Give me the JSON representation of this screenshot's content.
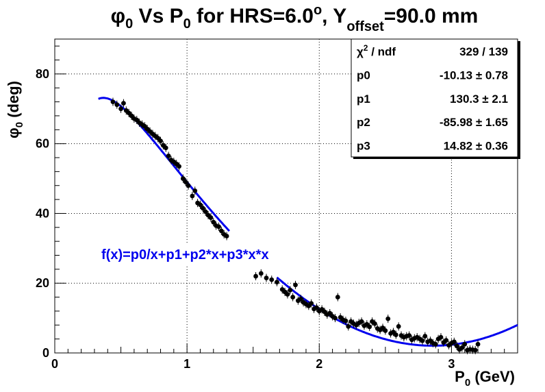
{
  "chart_data": {
    "type": "scatter",
    "title": {
      "phi": "φ",
      "phi_sub": "0",
      "mid": " Vs P",
      "p_sub": "0",
      "mid2": " for HRS=6.0",
      "deg_sup": "o",
      "mid3": ", Y",
      "y_sub": "offset",
      "end": "=90.0 mm"
    },
    "xlabel": {
      "base": "P",
      "sub": "0",
      "rest": " (GeV)"
    },
    "ylabel": {
      "base": "φ",
      "sub": "0",
      "rest": " (deg)"
    },
    "xlim": [
      0,
      3.5
    ],
    "ylim": [
      0,
      90
    ],
    "x_ticks": [
      0,
      1,
      2,
      3
    ],
    "x_tick_labels": [
      "0",
      "1",
      "2",
      "3"
    ],
    "y_ticks": [
      0,
      20,
      40,
      60,
      80
    ],
    "y_tick_labels": [
      "0",
      "20",
      "40",
      "60",
      "80"
    ],
    "grid": true,
    "stats_box": {
      "placement": "top-right",
      "rows": [
        {
          "label": "χ",
          "label_sup": "2",
          "label_rest": " / ndf",
          "value": "329 / 139"
        },
        {
          "label": "p0",
          "label_sup": "",
          "label_rest": "",
          "value": "-10.13 ± 0.78"
        },
        {
          "label": "p1",
          "label_sup": "",
          "label_rest": "",
          "value": "130.3 ± 2.1"
        },
        {
          "label": "p2",
          "label_sup": "",
          "label_rest": "",
          "value": "-85.98 ± 1.65"
        },
        {
          "label": "p3",
          "label_sup": "",
          "label_rest": "",
          "value": "14.82 ± 0.36"
        }
      ]
    },
    "fit": {
      "label": "f(x)=p0/x+p1+p2*x+p3*x*x",
      "p0": -10.13,
      "p1": 130.3,
      "p2": -85.98,
      "p3": 14.82,
      "x_range": [
        0.33,
        3.5
      ],
      "gap_x": [
        1.32,
        1.68
      ],
      "color": "#0000ee"
    },
    "series": [
      {
        "marker_color": "#000000",
        "points": [
          [
            0.44,
            72.0
          ],
          [
            0.47,
            71.2
          ],
          [
            0.5,
            70.0
          ],
          [
            0.52,
            71.6
          ],
          [
            0.54,
            69.5
          ],
          [
            0.56,
            68.8
          ],
          [
            0.58,
            68.0
          ],
          [
            0.6,
            67.2
          ],
          [
            0.62,
            66.8
          ],
          [
            0.64,
            66.0
          ],
          [
            0.66,
            65.5
          ],
          [
            0.68,
            65.0
          ],
          [
            0.7,
            64.2
          ],
          [
            0.72,
            63.5
          ],
          [
            0.74,
            62.8
          ],
          [
            0.76,
            62.2
          ],
          [
            0.78,
            61.6
          ],
          [
            0.8,
            60.8
          ],
          [
            0.82,
            59.5
          ],
          [
            0.84,
            58.8
          ],
          [
            0.86,
            56.5
          ],
          [
            0.88,
            55.3
          ],
          [
            0.9,
            54.8
          ],
          [
            0.92,
            54.2
          ],
          [
            0.94,
            53.5
          ],
          [
            0.97,
            50.0
          ],
          [
            0.99,
            49.0
          ],
          [
            1.01,
            48.0
          ],
          [
            1.04,
            45.0
          ],
          [
            1.06,
            46.5
          ],
          [
            1.08,
            43.0
          ],
          [
            1.1,
            42.5
          ],
          [
            1.12,
            41.5
          ],
          [
            1.14,
            40.5
          ],
          [
            1.16,
            39.5
          ],
          [
            1.18,
            38.8
          ],
          [
            1.2,
            37.5
          ],
          [
            1.22,
            36.5
          ],
          [
            1.24,
            36.2
          ],
          [
            1.26,
            35.0
          ],
          [
            1.28,
            34.0
          ],
          [
            1.3,
            33.5
          ],
          [
            1.52,
            22.0
          ],
          [
            1.56,
            22.8
          ],
          [
            1.6,
            21.5
          ],
          [
            1.64,
            21.0
          ],
          [
            1.68,
            20.3
          ],
          [
            1.72,
            18.2
          ],
          [
            1.74,
            17.5
          ],
          [
            1.76,
            16.8
          ],
          [
            1.78,
            18.0
          ],
          [
            1.8,
            16.0
          ],
          [
            1.82,
            19.5
          ],
          [
            1.84,
            15.0
          ],
          [
            1.86,
            15.5
          ],
          [
            1.88,
            14.5
          ],
          [
            1.9,
            14.0
          ],
          [
            1.92,
            13.5
          ],
          [
            1.94,
            14.2
          ],
          [
            1.96,
            12.6
          ],
          [
            1.98,
            13.0
          ],
          [
            2.0,
            12.0
          ],
          [
            2.02,
            12.5
          ],
          [
            2.04,
            11.8
          ],
          [
            2.06,
            11.0
          ],
          [
            2.08,
            11.4
          ],
          [
            2.1,
            10.5
          ],
          [
            2.12,
            10.0
          ],
          [
            2.14,
            16.0
          ],
          [
            2.16,
            10.2
          ],
          [
            2.18,
            9.5
          ],
          [
            2.2,
            9.2
          ],
          [
            2.22,
            7.6
          ],
          [
            2.24,
            9.0
          ],
          [
            2.26,
            8.4
          ],
          [
            2.28,
            8.0
          ],
          [
            2.3,
            8.6
          ],
          [
            2.32,
            9.0
          ],
          [
            2.34,
            7.8
          ],
          [
            2.36,
            8.2
          ],
          [
            2.38,
            7.5
          ],
          [
            2.4,
            9.0
          ],
          [
            2.42,
            8.4
          ],
          [
            2.44,
            7.0
          ],
          [
            2.46,
            6.6
          ],
          [
            2.48,
            7.2
          ],
          [
            2.5,
            6.4
          ],
          [
            2.52,
            9.8
          ],
          [
            2.54,
            5.6
          ],
          [
            2.56,
            6.0
          ],
          [
            2.58,
            5.2
          ],
          [
            2.6,
            7.6
          ],
          [
            2.62,
            5.0
          ],
          [
            2.64,
            4.5
          ],
          [
            2.66,
            4.8
          ],
          [
            2.68,
            5.0
          ],
          [
            2.7,
            3.8
          ],
          [
            2.72,
            4.2
          ],
          [
            2.74,
            4.5
          ],
          [
            2.76,
            4.0
          ],
          [
            2.78,
            3.5
          ],
          [
            2.8,
            4.8
          ],
          [
            2.82,
            3.2
          ],
          [
            2.84,
            3.5
          ],
          [
            2.86,
            2.8
          ],
          [
            2.88,
            2.5
          ],
          [
            2.9,
            4.0
          ],
          [
            2.92,
            4.5
          ],
          [
            2.94,
            3.0
          ],
          [
            2.96,
            3.6
          ],
          [
            2.98,
            2.2
          ],
          [
            3.0,
            2.8
          ],
          [
            3.02,
            3.2
          ],
          [
            3.04,
            2.0
          ],
          [
            3.06,
            1.0
          ],
          [
            3.08,
            1.5
          ],
          [
            3.1,
            2.5
          ],
          [
            3.12,
            0.8
          ],
          [
            3.14,
            1.0
          ],
          [
            3.16,
            0.9
          ],
          [
            3.18,
            0.8
          ],
          [
            3.2,
            2.5
          ]
        ]
      }
    ]
  }
}
